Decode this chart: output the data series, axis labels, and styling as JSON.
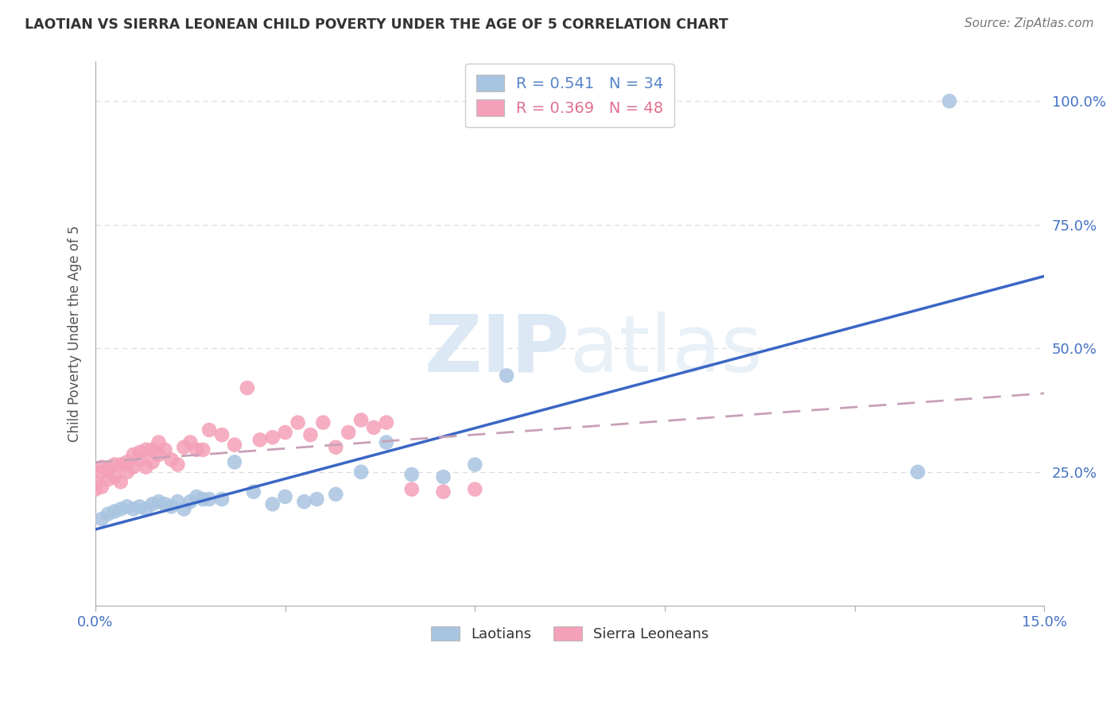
{
  "title": "LAOTIAN VS SIERRA LEONEAN CHILD POVERTY UNDER THE AGE OF 5 CORRELATION CHART",
  "source": "Source: ZipAtlas.com",
  "ylabel": "Child Poverty Under the Age of 5",
  "xlim": [
    0.0,
    0.15
  ],
  "ylim": [
    -0.02,
    1.08
  ],
  "xticks": [
    0.0,
    0.03,
    0.06,
    0.09,
    0.12,
    0.15
  ],
  "yticks": [
    0.25,
    0.5,
    0.75,
    1.0
  ],
  "ytick_labels": [
    "25.0%",
    "50.0%",
    "75.0%",
    "100.0%"
  ],
  "xtick_labels": [
    "0.0%",
    "",
    "",
    "",
    "",
    "15.0%"
  ],
  "background_color": "#ffffff",
  "grid_color": "#dddddd",
  "laotian_color": "#a8c4e0",
  "sierra_color": "#f4a0b8",
  "laotian_line_color": "#3a66c4",
  "sierra_line_color": "#c8a0b8",
  "legend_R_laotian": "R = 0.541",
  "legend_N_laotian": "N = 34",
  "legend_R_sierra": "R = 0.369",
  "legend_N_sierra": "N = 48",
  "laotian_x": [
    0.001,
    0.002,
    0.003,
    0.004,
    0.005,
    0.006,
    0.007,
    0.008,
    0.009,
    0.01,
    0.011,
    0.012,
    0.013,
    0.014,
    0.015,
    0.016,
    0.017,
    0.018,
    0.02,
    0.022,
    0.025,
    0.028,
    0.03,
    0.033,
    0.035,
    0.038,
    0.042,
    0.046,
    0.05,
    0.055,
    0.06,
    0.065,
    0.13,
    0.135
  ],
  "laotian_y": [
    0.155,
    0.165,
    0.17,
    0.175,
    0.18,
    0.175,
    0.18,
    0.175,
    0.185,
    0.19,
    0.185,
    0.18,
    0.19,
    0.175,
    0.19,
    0.2,
    0.195,
    0.195,
    0.195,
    0.27,
    0.21,
    0.185,
    0.2,
    0.19,
    0.195,
    0.205,
    0.25,
    0.31,
    0.245,
    0.24,
    0.265,
    0.445,
    0.25,
    1.0
  ],
  "sierra_x": [
    0.0,
    0.0,
    0.001,
    0.001,
    0.001,
    0.002,
    0.002,
    0.003,
    0.003,
    0.004,
    0.004,
    0.005,
    0.005,
    0.006,
    0.006,
    0.007,
    0.007,
    0.008,
    0.008,
    0.009,
    0.009,
    0.01,
    0.01,
    0.011,
    0.012,
    0.013,
    0.014,
    0.015,
    0.016,
    0.017,
    0.018,
    0.02,
    0.022,
    0.024,
    0.026,
    0.028,
    0.03,
    0.032,
    0.034,
    0.036,
    0.038,
    0.04,
    0.042,
    0.044,
    0.046,
    0.05,
    0.055,
    0.06
  ],
  "sierra_y": [
    0.215,
    0.23,
    0.22,
    0.25,
    0.26,
    0.235,
    0.255,
    0.24,
    0.265,
    0.23,
    0.265,
    0.25,
    0.27,
    0.26,
    0.285,
    0.275,
    0.29,
    0.26,
    0.295,
    0.27,
    0.295,
    0.285,
    0.31,
    0.295,
    0.275,
    0.265,
    0.3,
    0.31,
    0.295,
    0.295,
    0.335,
    0.325,
    0.305,
    0.42,
    0.315,
    0.32,
    0.33,
    0.35,
    0.325,
    0.35,
    0.3,
    0.33,
    0.355,
    0.34,
    0.35,
    0.215,
    0.21,
    0.215
  ]
}
